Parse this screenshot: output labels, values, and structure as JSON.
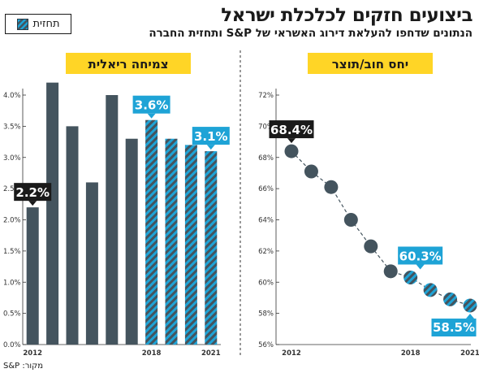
{
  "header": {
    "title": "ביצועים חזקים לכלכלת ישראל",
    "subtitle": "הנתונים שדחפו להעלאת דירוג האשראי של S&P ותחזית החברה"
  },
  "legend": {
    "label": "תחזית"
  },
  "source": "מקור: S&P",
  "colors": {
    "actual": "#44545e",
    "forecast_stripe": "#1ea3d6",
    "callout_dark": "#1a1a1a",
    "callout_blue": "#1ea3d6",
    "panel_title_bg": "#ffd526"
  },
  "chart_data": [
    {
      "type": "bar",
      "title": "צמיחה ריאלית",
      "x": [
        2012,
        2013,
        2014,
        2015,
        2016,
        2017,
        2018,
        2019,
        2020,
        2021
      ],
      "values": [
        2.2,
        4.2,
        3.5,
        2.6,
        4.0,
        3.3,
        3.6,
        3.3,
        3.2,
        3.1
      ],
      "forecast_from_index": 6,
      "ylim": [
        0,
        4.0
      ],
      "yticks": [
        "0.0%",
        "0.5%",
        "1.0%",
        "1.5%",
        "2.0%",
        "2.5%",
        "3.0%",
        "3.5%",
        "4.0%"
      ],
      "xtick_labels": [
        {
          "index": 0,
          "label": "2012"
        },
        {
          "index": 6,
          "label": "2018"
        },
        {
          "index": 9,
          "label": "2021"
        }
      ],
      "callouts": [
        {
          "index": 0,
          "text": "2.2%",
          "style": "dark"
        },
        {
          "index": 6,
          "text": "3.6%",
          "style": "blue"
        },
        {
          "index": 9,
          "text": "3.1%",
          "style": "blue"
        }
      ],
      "grid": false
    },
    {
      "type": "line",
      "title": "יחס חוב/תוצר",
      "x": [
        2012,
        2013,
        2014,
        2015,
        2016,
        2017,
        2018,
        2019,
        2020,
        2021
      ],
      "values": [
        68.4,
        67.1,
        66.1,
        64.0,
        62.3,
        60.7,
        60.3,
        59.5,
        58.9,
        58.5
      ],
      "forecast_from_index": 6,
      "ylim": [
        56,
        72
      ],
      "yticks": [
        "56%",
        "58%",
        "60%",
        "62%",
        "64%",
        "66%",
        "68%",
        "70%",
        "72%"
      ],
      "xtick_labels": [
        {
          "index": 0,
          "label": "2012"
        },
        {
          "index": 6,
          "label": "2018"
        },
        {
          "index": 9,
          "label": "2021"
        }
      ],
      "callouts": [
        {
          "index": 0,
          "text": "68.4%",
          "style": "dark"
        },
        {
          "index": 6,
          "text": "60.3%",
          "style": "blue"
        },
        {
          "index": 9,
          "text": "58.5%",
          "style": "blue"
        }
      ],
      "grid": false
    }
  ]
}
